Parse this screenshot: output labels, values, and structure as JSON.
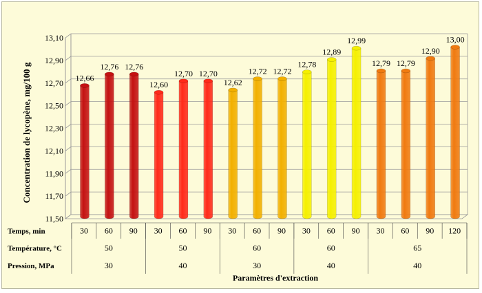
{
  "chart_data": {
    "type": "bar",
    "title": "",
    "ylabel": "Concentration de lycopène, mg/100 g",
    "xlabel": "Paramètres d'extraction",
    "ylim": [
      11.5,
      13.1
    ],
    "yticks": [
      "11,50",
      "11,70",
      "11,90",
      "12,10",
      "12,30",
      "12,50",
      "12,70",
      "12,90",
      "13,10"
    ],
    "grid": true,
    "legend": "none",
    "values": [
      12.66,
      12.76,
      12.76,
      12.6,
      12.7,
      12.7,
      12.62,
      12.72,
      12.72,
      12.78,
      12.89,
      12.99,
      12.79,
      12.79,
      12.9,
      13.0
    ],
    "value_labels": [
      "12,66",
      "12,76",
      "12,76",
      "12,60",
      "12,70",
      "12,70",
      "12,62",
      "12,72",
      "12,72",
      "12,78",
      "12,89",
      "12,99",
      "12,79",
      "12,79",
      "12,90",
      "13,00"
    ],
    "row_labels": {
      "temps": "Temps, min",
      "temperature": "Température, °C",
      "pression": "Pression, MPa"
    },
    "temps": [
      "30",
      "60",
      "90",
      "30",
      "60",
      "90",
      "30",
      "60",
      "90",
      "30",
      "60",
      "90",
      "30",
      "60",
      "90",
      "120"
    ],
    "groups": [
      {
        "temperature": "50",
        "pression": "30",
        "count": 3,
        "color": "#c41212"
      },
      {
        "temperature": "50",
        "pression": "40",
        "count": 3,
        "color": "#ff2a1a"
      },
      {
        "temperature": "60",
        "pression": "30",
        "count": 3,
        "color": "#f2b000"
      },
      {
        "temperature": "60",
        "pression": "40",
        "count": 3,
        "color": "#f5f000"
      },
      {
        "temperature": "65",
        "pression": "40",
        "count": 4,
        "color": "#f07a10"
      }
    ]
  }
}
